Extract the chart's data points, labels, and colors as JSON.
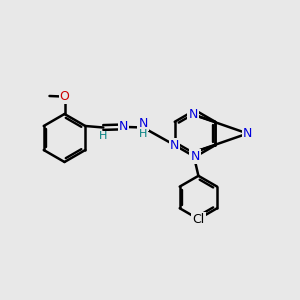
{
  "background_color": "#e8e8e8",
  "bond_color": "#000000",
  "bond_width": 1.8,
  "blue": "#0000dd",
  "red": "#cc0000",
  "teal": "#008080",
  "black": "#000000",
  "figsize": [
    3.0,
    3.0
  ],
  "dpi": 100,
  "xlim": [
    0,
    10
  ],
  "ylim": [
    0,
    10
  ]
}
